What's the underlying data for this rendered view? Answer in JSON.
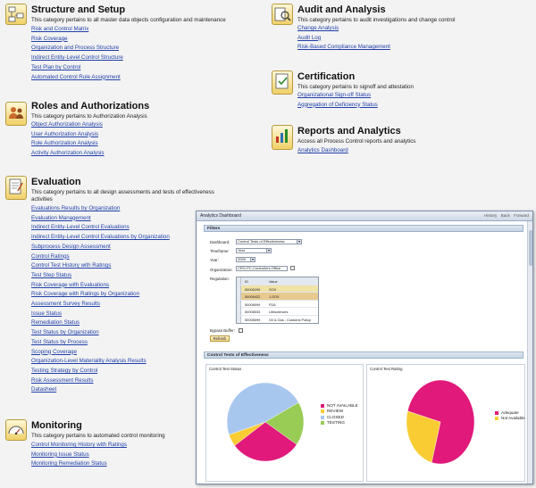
{
  "categories": [
    {
      "key": "structure",
      "title": "Structure and Setup",
      "description": "This category pertains to all master data objects configuration and maintenance",
      "icon": "structure-setup-icon",
      "links": [
        "Risk and Control Matrix",
        "Risk Coverage",
        "Organization and Process Structure",
        "Indirect Entity-Level Control Structure",
        "Test Plan by Control",
        "Automated Control Rule Assignment"
      ]
    },
    {
      "key": "roles",
      "title": "Roles and Authorizations",
      "description": "This category pertains to Authorization Analysis",
      "icon": "roles-authorizations-icon",
      "links": [
        "Object Authorization Analysis",
        "User Authorization Analysis",
        "Role Authorization Analysis",
        "Activity Authorization Analysis"
      ]
    },
    {
      "key": "evaluation",
      "title": "Evaluation",
      "description": "This category pertains to all design assessments and tests of effectiveness activities",
      "icon": "evaluation-icon",
      "links": [
        "Evaluations Results by Organization",
        "Evaluation Management",
        "Indirect Entity-Level Control Evaluations",
        "Indirect Entity-Level Control Evaluations by Organization",
        "Subprocess Design Assessment",
        "Control Ratings",
        "Control Test History with Ratings",
        "Test Step Status",
        "Risk Coverage with Evaluations",
        "Risk Coverage with Ratings by Organization",
        "Assessment Survey Results",
        "Issue Status",
        "Remediation Status",
        "Test Status by Organization",
        "Test Status by Process",
        "Scoping Coverage",
        "Organization-Level Materiality Analysis Results",
        "Testing Strategy by Control",
        "Risk Assessment Results",
        "Datasheet"
      ]
    },
    {
      "key": "monitoring",
      "title": "Monitoring",
      "description": "This category pertains to automated control monitoring",
      "icon": "monitoring-gauge-icon",
      "links": [
        "Control Monitoring History with Ratings",
        "Monitoring Issue Status",
        "Monitoring Remediation Status"
      ]
    },
    {
      "key": "audit",
      "title": "Audit and Analysis",
      "description": "This category pertains to audit investigations and change control",
      "icon": "audit-analysis-icon",
      "links": [
        "Change Analysis",
        "Audit Log",
        "Risk-Based Compliance Management"
      ]
    },
    {
      "key": "certification",
      "title": "Certification",
      "description": "This category pertains to signoff and attestation",
      "icon": "certification-icon",
      "links": [
        "Organizational Sign-off Status",
        "Aggregation of Deficiency Status"
      ]
    },
    {
      "key": "reports",
      "title": "Reports and Analytics",
      "description": "Access all Process Control reports and analytics",
      "icon": "reports-analytics-icon",
      "links": [
        "Analytics Dashboard"
      ]
    }
  ],
  "dashboard": {
    "title": "Analytics Dashboard",
    "nav": [
      "History",
      "Back",
      "Forward"
    ],
    "filters_header": "Filters",
    "fields": {
      "dashboard_label": "Dashboard:",
      "dashboard_value": "Control Tests of Effectiveness",
      "timeframe_label": "Timeframe:",
      "timeframe_value": "Year",
      "year_label": "Year:",
      "year_value": "2009",
      "organization_label": "Organization:",
      "organization_value": "CRG-PC-Controllers-Office",
      "regulation_label": "Regulation:",
      "bypass_label": "Bypass Buffer:",
      "refresh_label": "Refresh"
    },
    "regulation_table": {
      "columns": [
        "ID",
        "Value"
      ],
      "rows": [
        {
          "id": "50006299",
          "value": "SOX"
        },
        {
          "id": "50006422",
          "value": "J-SOX"
        },
        {
          "id": "50008099",
          "value": "FDA"
        },
        {
          "id": "50008033",
          "value": "Lifesciences"
        },
        {
          "id": "50008099",
          "value": "Oil & Gas - Customs Policy"
        }
      ]
    },
    "charts_header": "Control Tests of Effectiveness",
    "colors": {
      "not_available": "#e0197a",
      "review": "#f9cc33",
      "closed": "#a8c7ef",
      "testing": "#99cc55"
    },
    "chart_data": [
      {
        "type": "pie",
        "title": "Control Test Status",
        "legend": [
          "NOT AVAILABLE",
          "REVIEW",
          "CLOSED",
          "TESTING"
        ],
        "slices": [
          {
            "label": "NOT AVAILABLE",
            "value": 30,
            "color": "#e0197a"
          },
          {
            "label": "REVIEW",
            "value": 5,
            "color": "#f9cc33"
          },
          {
            "label": "CLOSED",
            "value": 47,
            "color": "#a8c7ef"
          },
          {
            "label": "TESTING",
            "value": 18,
            "color": "#99cc55"
          }
        ]
      },
      {
        "type": "pie",
        "title": "Control Test Rating",
        "legend": [
          "Adequate",
          "Not Available"
        ],
        "slices": [
          {
            "label": "Adequate",
            "value": 75,
            "color": "#e0197a"
          },
          {
            "label": "Not Available",
            "value": 25,
            "color": "#f9cc33"
          }
        ]
      }
    ]
  }
}
